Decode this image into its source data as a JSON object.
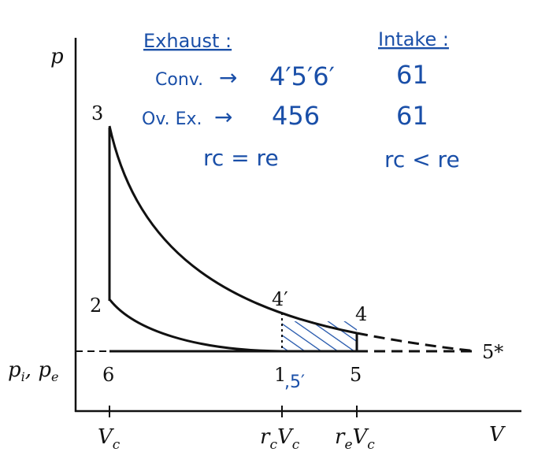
{
  "axes": {
    "y_label": "p",
    "x_label": "V",
    "pressure_level_label": "pi, pe",
    "pressure_level_label_parts": {
      "p1": "p",
      "s1": "i",
      "sep": ", ",
      "p2": "p",
      "s2": "e"
    },
    "x_ticks": [
      {
        "main": "V",
        "sub": "c"
      },
      {
        "pre": "r",
        "pre_sub": "c",
        "main": "V",
        "sub": "c"
      },
      {
        "pre": "r",
        "pre_sub": "e",
        "main": "V",
        "sub": "c"
      }
    ]
  },
  "points": {
    "p1": "1",
    "p2": "2",
    "p3": "3",
    "p4": "4",
    "p4prime": "4′",
    "p5": "5",
    "p5star": "5*",
    "p6": "6",
    "p5prime_annot": ",5′"
  },
  "annotations": {
    "exhaust_header": "Exhaust :",
    "intake_header": "Intake :",
    "conv_label": "Conv.",
    "conv_exhaust": "4′5′6′",
    "conv_intake": "61",
    "ovex_label": "Ov. Ex.",
    "ovex_exhaust": "456",
    "ovex_intake": "61",
    "cond_exhaust": "rc = re",
    "cond_intake": "rc < re",
    "arrow": "→"
  },
  "colors": {
    "ink": "#111111",
    "handwriting": "#1a4fa8",
    "hatch": "#1a4fa8"
  }
}
